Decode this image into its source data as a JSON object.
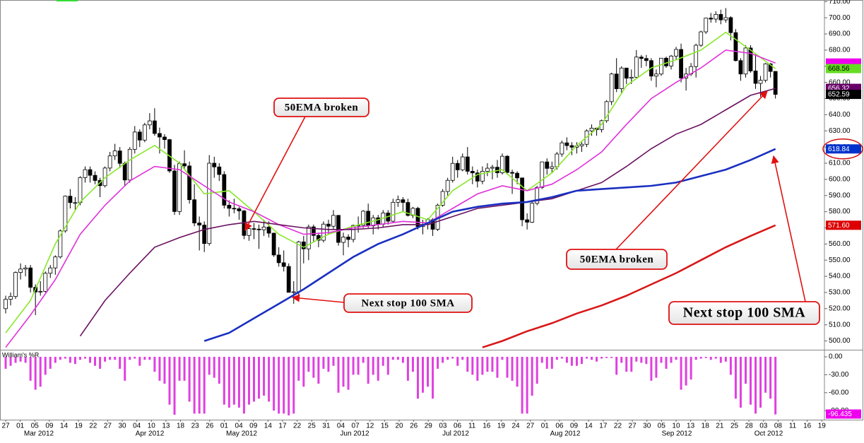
{
  "chart_data": [
    {
      "type": "candlestick",
      "open": [
        520,
        525.8,
        527.5,
        542.4,
        544.5,
        545.2,
        533.2,
        530.3,
        530.7,
        541.9,
        545.2,
        552.0,
        568.1,
        589.6,
        585.6,
        585.6,
        601.1,
        606.0,
        602.5,
        599.3,
        596.1,
        607.0,
        614.5,
        617.6,
        609.9,
        599.6,
        618.6,
        629.3,
        624.3,
        633.7,
        636.2,
        628.4,
        626.2,
        624.6,
        605.2,
        580.1,
        609.7,
        608.3,
        587.4,
        573.0,
        571.7,
        560.3,
        610.0,
        607.7,
        603.0,
        584.0,
        582.1,
        581.8,
        580.5,
        565.3,
        569.5,
        569.2,
        568.8,
        570.5,
        566.7,
        553.2,
        548.4,
        546.1,
        530.1,
        530.4,
        561.3,
        557.0,
        570.6,
        565.3,
        562.3,
        572.3,
        571.0,
        577.7,
        561.0,
        564.3,
        562.8,
        571.5,
        571.6,
        580.3,
        571.2,
        576.2,
        572.2,
        579.2,
        574.1,
        585.8,
        587.4,
        585.7,
        577.7,
        582.1,
        570.8,
        572.0,
        575.0,
        569.1,
        584.0,
        592.5,
        599.4,
        609.9,
        605.9,
        613.9,
        605.0,
        604.0,
        598.9,
        605.0,
        606.9,
        607.5,
        604.1,
        614.3,
        604.3,
        603.8,
        600.9,
        575.0,
        573.5,
        585.2,
        595.0,
        610.8,
        606.8,
        607.8,
        615.7,
        622.6,
        620.9,
        619.9,
        620.7,
        621.7,
        630.0,
        631.7,
        630.8,
        636.3,
        648.1,
        665.2,
        656.1,
        668.9,
        662.6,
        663.2,
        675.7,
        674.8,
        673.5,
        663.9,
        665.2,
        675.0,
        670.2,
        676.3,
        680.4,
        662.7,
        665.2,
        669.8,
        683.0,
        691.3,
        699.8,
        699.2,
        702.1,
        698.7,
        700.1,
        690.8,
        673.5,
        665.2,
        681.3,
        667.1,
        659.4,
        661.3,
        671.5,
        666.8
      ],
      "high": [
        528,
        530,
        543,
        548,
        547,
        547,
        535,
        537,
        543,
        547,
        553,
        569,
        590,
        594,
        589,
        602,
        608,
        608,
        605,
        601,
        608,
        617,
        622,
        620,
        611,
        620,
        633,
        631,
        635,
        641,
        644,
        632,
        628,
        625,
        609,
        611,
        618,
        611,
        597,
        577,
        574,
        615,
        614,
        610,
        605,
        587,
        588,
        583,
        581,
        572,
        573,
        572,
        575,
        574,
        567,
        558,
        556,
        548,
        537,
        562,
        565,
        572,
        572,
        567,
        574,
        575,
        581,
        578,
        567,
        566,
        572,
        577,
        581,
        585,
        578,
        578,
        581,
        581,
        588,
        590,
        589,
        588,
        583,
        583,
        575,
        576,
        576,
        585,
        594,
        601,
        614,
        612,
        616,
        620,
        608,
        606,
        608,
        610,
        609,
        612,
        616,
        615,
        606,
        605,
        601,
        579,
        586,
        596,
        611,
        613,
        611,
        617,
        624,
        626,
        623,
        623,
        623,
        631,
        634,
        632,
        637,
        649,
        666,
        675,
        670,
        669,
        668,
        680,
        677,
        677,
        675,
        668,
        675,
        676,
        677,
        682,
        684,
        669,
        672,
        684,
        692,
        700,
        703,
        704,
        705,
        706,
        701,
        693,
        675,
        683,
        683,
        678,
        664,
        672,
        672,
        667
      ],
      "low": [
        517,
        522,
        526,
        538,
        540,
        530,
        516,
        528,
        530,
        539,
        541,
        551,
        567,
        582,
        581,
        584,
        598,
        598,
        597,
        589,
        595,
        605,
        612,
        607,
        596,
        598,
        616,
        620,
        623,
        631,
        627,
        616,
        619,
        604,
        578,
        578,
        606,
        585,
        571,
        556,
        555,
        559,
        601,
        599,
        582,
        577,
        579,
        575,
        563,
        562,
        563,
        557,
        565,
        564,
        552,
        546,
        543,
        530,
        523,
        528,
        548,
        550,
        561,
        558,
        561,
        566,
        569,
        559,
        553,
        558,
        561,
        567,
        570,
        570,
        566,
        569,
        570,
        572,
        573,
        583,
        580,
        577,
        576,
        569,
        566,
        569,
        565,
        568,
        583,
        590,
        598,
        601,
        605,
        603,
        597,
        595,
        597,
        602,
        600,
        601,
        603,
        603,
        591,
        597,
        571,
        569,
        573,
        584,
        594,
        603,
        604,
        606,
        614,
        618,
        615,
        616,
        617,
        620,
        627,
        627,
        629,
        635,
        646,
        654,
        653,
        659,
        659,
        662,
        669,
        670,
        661,
        657,
        664,
        669,
        668,
        674,
        660,
        655,
        664,
        663,
        682,
        690,
        697,
        697,
        696,
        697,
        686,
        673,
        661,
        663,
        666,
        656,
        651,
        660,
        663,
        650
      ],
      "close": [
        525.8,
        527.5,
        542.4,
        544.5,
        545.2,
        533.2,
        530.3,
        530.7,
        541.9,
        545.2,
        552.0,
        568.1,
        589.6,
        585.6,
        585.6,
        601.1,
        606.0,
        602.5,
        599.3,
        596.1,
        607.0,
        614.5,
        617.6,
        609.9,
        599.6,
        618.6,
        629.3,
        624.3,
        633.7,
        636.2,
        628.4,
        626.2,
        624.6,
        605.2,
        580.1,
        609.7,
        608.3,
        587.4,
        573.0,
        571.7,
        560.3,
        610.0,
        607.7,
        603.0,
        584.0,
        582.1,
        581.8,
        580.5,
        565.3,
        569.5,
        569.2,
        568.8,
        570.5,
        566.7,
        553.2,
        548.4,
        546.1,
        530.1,
        530.4,
        561.3,
        557.0,
        570.6,
        565.3,
        562.3,
        572.3,
        571.0,
        577.7,
        561.0,
        564.3,
        562.8,
        571.5,
        571.6,
        580.3,
        571.2,
        576.2,
        572.2,
        579.2,
        574.1,
        585.8,
        587.4,
        585.7,
        577.7,
        582.1,
        570.8,
        572.0,
        575.0,
        569.1,
        584.0,
        592.5,
        599.4,
        609.9,
        605.9,
        613.9,
        605.0,
        604.0,
        598.9,
        605.0,
        606.9,
        607.5,
        604.1,
        614.3,
        604.3,
        603.8,
        600.9,
        575.0,
        573.5,
        585.2,
        595.0,
        610.8,
        606.8,
        607.8,
        615.7,
        622.6,
        620.9,
        619.9,
        620.7,
        621.7,
        630.0,
        631.7,
        630.8,
        636.3,
        648.1,
        665.2,
        656.1,
        668.9,
        662.6,
        663.2,
        675.7,
        674.8,
        673.5,
        663.9,
        665.2,
        675.0,
        670.2,
        676.3,
        680.4,
        662.7,
        665.2,
        669.8,
        683.0,
        691.3,
        699.8,
        699.2,
        702.1,
        698.7,
        700.1,
        690.8,
        673.5,
        665.2,
        681.3,
        667.1,
        659.4,
        661.3,
        671.5,
        666.8,
        652.59
      ],
      "series": [
        {
          "color": "#88e82a",
          "tag_color": "#66dd22",
          "x": [
            0,
            5,
            10,
            15,
            20,
            25,
            30,
            35,
            40,
            45,
            50,
            55,
            60,
            65,
            70,
            75,
            80,
            85,
            90,
            95,
            100,
            105,
            110,
            115,
            120,
            125,
            130,
            135,
            140,
            145,
            150,
            155
          ],
          "values": [
            505,
            525,
            560,
            586,
            601,
            612,
            621,
            610,
            591,
            593,
            580,
            566,
            558,
            566,
            571,
            575,
            580,
            575,
            593,
            603,
            606,
            593,
            604,
            621,
            634,
            658,
            669,
            674,
            680,
            691,
            680,
            668.56
          ]
        },
        {
          "color": "#e030d8",
          "tag_color": "#ee00ee",
          "x": [
            0,
            5,
            10,
            15,
            20,
            25,
            30,
            35,
            40,
            45,
            50,
            55,
            60,
            65,
            70,
            75,
            80,
            85,
            90,
            95,
            100,
            105,
            110,
            115,
            120,
            125,
            130,
            135,
            140,
            145,
            150,
            155
          ],
          "values": [
            496,
            516,
            538,
            566,
            584,
            599,
            608,
            606,
            596,
            586,
            580,
            572,
            566,
            567,
            570,
            572,
            574,
            573,
            582,
            591,
            596,
            593,
            597,
            606,
            617,
            634,
            650,
            660,
            669,
            680,
            678,
            672
          ]
        },
        {
          "color": "#6a1060",
          "tag_color": "#660066",
          "x": [
            15,
            20,
            25,
            30,
            35,
            40,
            45,
            50,
            55,
            60,
            65,
            70,
            75,
            80,
            85,
            90,
            95,
            100,
            105,
            110,
            115,
            120,
            125,
            130,
            135,
            140,
            145,
            150,
            155
          ],
          "values": [
            503,
            525,
            542,
            558,
            564,
            569,
            572,
            574,
            572,
            570,
            569,
            569,
            570,
            572,
            572,
            577,
            582,
            584,
            586,
            588,
            593,
            598,
            608,
            619,
            628,
            634,
            643,
            652,
            656.32
          ]
        },
        {
          "color": "#1a2fc0",
          "tag_color": "#0033cc",
          "x": [
            40,
            45,
            50,
            55,
            60,
            65,
            70,
            75,
            80,
            85,
            90,
            95,
            100,
            105,
            110,
            115,
            120,
            125,
            130,
            135,
            140,
            145,
            150,
            155
          ],
          "values": [
            500,
            505,
            514,
            523,
            532,
            542,
            552,
            560,
            566,
            573,
            580,
            583,
            585,
            586,
            589,
            593,
            594,
            595,
            596,
            598,
            602,
            606,
            612,
            618.84
          ]
        },
        {
          "color": "#d81818",
          "tag_color": "#dd0000",
          "x": [
            96,
            100,
            105,
            110,
            115,
            120,
            125,
            130,
            135,
            140,
            145,
            150,
            155
          ],
          "values": [
            496,
            500,
            506,
            511,
            517,
            522,
            528,
            535,
            542,
            550,
            558,
            565,
            571.6
          ],
          "tag_label": "571.60"
        }
      ],
      "ylim": [
        495,
        711
      ],
      "yticks": [
        {
          "value": 500,
          "label": "500.00"
        },
        {
          "value": 510,
          "label": "510.00"
        },
        {
          "value": 520,
          "label": "520.00"
        },
        {
          "value": 530,
          "label": "530.00"
        },
        {
          "value": 540,
          "label": "540.00"
        },
        {
          "value": 550,
          "label": "550.00"
        },
        {
          "value": 560,
          "label": "560.00"
        },
        {
          "value": 570,
          "label": "570.00"
        },
        {
          "value": 580,
          "label": "580.00"
        },
        {
          "value": 590,
          "label": "590.00"
        },
        {
          "value": 600,
          "label": "600.00"
        },
        {
          "value": 610,
          "label": "610.00"
        },
        {
          "value": 620,
          "label": "620.00"
        },
        {
          "value": 630,
          "label": "630.00"
        },
        {
          "value": 640,
          "label": "640.00"
        },
        {
          "value": 650,
          "label": "650.00"
        },
        {
          "value": 660,
          "label": "660.00"
        },
        {
          "value": 670,
          "label": "670.00"
        },
        {
          "value": 680,
          "label": "680.00"
        },
        {
          "value": 690,
          "label": "690.00"
        },
        {
          "value": 700,
          "label": "700.00"
        },
        {
          "value": 710,
          "label": "710.00"
        }
      ],
      "date_ticks": [
        "27",
        "01",
        "05",
        "09",
        "14",
        "19",
        "22",
        "27",
        "30",
        "04",
        "10",
        "13",
        "18",
        "23",
        "26",
        "01",
        "04",
        "09",
        "14",
        "17",
        "22",
        "25",
        "31",
        "04",
        "07",
        "12",
        "15",
        "20",
        "26",
        "29",
        "03",
        "06",
        "11",
        "16",
        "19",
        "24",
        "27",
        "01",
        "06",
        "09",
        "14",
        "17",
        "22",
        "27",
        "30",
        "05",
        "10",
        "13",
        "18",
        "21",
        "25",
        "28",
        "03",
        "08",
        "11",
        "16",
        "19"
      ],
      "months": [
        "Mar 2012",
        "Apr 2012",
        "May 2012",
        "Jun 2012",
        "Jul 2012",
        "Aug 2012",
        "Sep 2012",
        "Oct 2012"
      ],
      "annotations": [
        "50EMA broken",
        "Next stop 100 SMA",
        "50EMA broken",
        "Next stop 100 SMA"
      ]
    },
    {
      "type": "bar",
      "title": "William's %R",
      "color": "#e040e0",
      "values": [
        -20,
        -15,
        -10,
        -8,
        -10,
        -40,
        -55,
        -50,
        -30,
        -20,
        -10,
        -5,
        -3,
        -10,
        -12,
        -5,
        -3,
        -10,
        -15,
        -20,
        -8,
        -5,
        -5,
        -20,
        -40,
        -5,
        -3,
        -15,
        -5,
        -5,
        -25,
        -40,
        -45,
        -80,
        -97,
        -40,
        -40,
        -75,
        -95,
        -95,
        -95,
        -30,
        -35,
        -45,
        -80,
        -85,
        -80,
        -85,
        -95,
        -80,
        -75,
        -70,
        -65,
        -75,
        -90,
        -95,
        -95,
        -98,
        -95,
        -40,
        -50,
        -25,
        -35,
        -45,
        -20,
        -25,
        -15,
        -60,
        -50,
        -55,
        -30,
        -30,
        -10,
        -45,
        -30,
        -40,
        -15,
        -30,
        -5,
        -5,
        -10,
        -40,
        -25,
        -70,
        -60,
        -50,
        -70,
        -20,
        -10,
        -5,
        -3,
        -15,
        -5,
        -25,
        -30,
        -40,
        -30,
        -25,
        -25,
        -35,
        -5,
        -35,
        -40,
        -50,
        -95,
        -95,
        -65,
        -45,
        -10,
        -20,
        -20,
        -5,
        -3,
        -10,
        -15,
        -15,
        -12,
        -3,
        -5,
        -8,
        -3,
        -2,
        -2,
        -30,
        -10,
        -25,
        -25,
        -8,
        -10,
        -12,
        -40,
        -35,
        -10,
        -20,
        -10,
        -5,
        -55,
        -48,
        -38,
        -5,
        -3,
        -2,
        -5,
        -3,
        -10,
        -8,
        -30,
        -70,
        -85,
        -45,
        -80,
        -95,
        -85,
        -60,
        -70,
        -96.435
      ],
      "ylim": [
        -104,
        9.5
      ],
      "yticks": [
        {
          "value": 0,
          "label": "0.00"
        },
        {
          "value": -30,
          "label": "-30.00"
        },
        {
          "value": -60,
          "label": "-60.00"
        },
        {
          "value": -90,
          "label": "-90.00"
        }
      ]
    }
  ]
}
